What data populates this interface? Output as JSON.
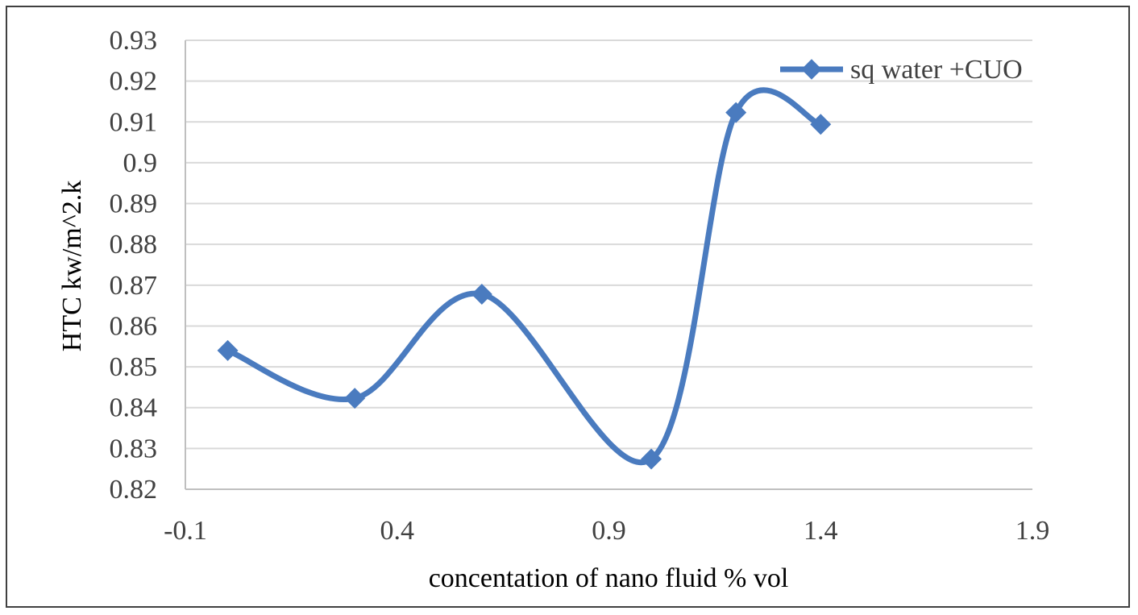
{
  "chart_data": {
    "type": "scatter",
    "title": "",
    "xlabel": "concentation of nano fluid % vol",
    "ylabel": "HTC kw/m^2.k",
    "xlim": [
      -0.1,
      1.9
    ],
    "ylim": [
      0.82,
      0.93
    ],
    "x_ticks": [
      "-0.1",
      "0.4",
      "0.9",
      "1.4",
      "1.9"
    ],
    "y_ticks": [
      "0.82",
      "0.83",
      "0.84",
      "0.85",
      "0.86",
      "0.87",
      "0.88",
      "0.89",
      "0.9",
      "0.91",
      "0.92",
      "0.93"
    ],
    "x_tick_values": [
      -0.1,
      0.4,
      0.9,
      1.4,
      1.9
    ],
    "y_tick_values": [
      0.82,
      0.83,
      0.84,
      0.85,
      0.86,
      0.87,
      0.88,
      0.89,
      0.9,
      0.91,
      0.92,
      0.93
    ],
    "grid": "horizontal",
    "legend_position": "top-right",
    "smooth": true,
    "series": [
      {
        "name": "sq water +CUO",
        "color": "#4a7bbf",
        "marker": "diamond",
        "points": [
          {
            "x": 0.0,
            "y": 0.854
          },
          {
            "x": 0.3,
            "y": 0.8423
          },
          {
            "x": 0.6,
            "y": 0.8678
          },
          {
            "x": 1.0,
            "y": 0.8274
          },
          {
            "x": 1.2,
            "y": 0.9123
          },
          {
            "x": 1.4,
            "y": 0.9094
          }
        ]
      }
    ]
  }
}
